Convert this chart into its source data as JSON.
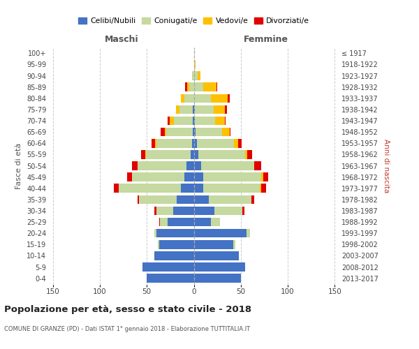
{
  "age_groups": [
    "0-4",
    "5-9",
    "10-14",
    "15-19",
    "20-24",
    "25-29",
    "30-34",
    "35-39",
    "40-44",
    "45-49",
    "50-54",
    "55-59",
    "60-64",
    "65-69",
    "70-74",
    "75-79",
    "80-84",
    "85-89",
    "90-94",
    "95-99",
    "100+"
  ],
  "birth_years": [
    "2013-2017",
    "2008-2012",
    "2003-2007",
    "1998-2002",
    "1993-1997",
    "1988-1992",
    "1983-1987",
    "1978-1982",
    "1973-1977",
    "1968-1972",
    "1963-1967",
    "1958-1962",
    "1953-1957",
    "1948-1952",
    "1943-1947",
    "1938-1942",
    "1933-1937",
    "1928-1932",
    "1923-1927",
    "1918-1922",
    "≤ 1917"
  ],
  "males": {
    "celibi": [
      50,
      55,
      42,
      37,
      40,
      28,
      22,
      18,
      14,
      10,
      8,
      3,
      2,
      1,
      1,
      1,
      0,
      0,
      0,
      0,
      0
    ],
    "coniugati": [
      0,
      0,
      0,
      1,
      2,
      8,
      18,
      40,
      66,
      56,
      52,
      48,
      38,
      28,
      20,
      14,
      10,
      5,
      2,
      0,
      0
    ],
    "vedovi": [
      0,
      0,
      0,
      0,
      0,
      0,
      0,
      0,
      0,
      0,
      0,
      1,
      1,
      2,
      5,
      4,
      4,
      2,
      0,
      0,
      0
    ],
    "divorziati": [
      0,
      0,
      0,
      0,
      0,
      1,
      2,
      2,
      5,
      5,
      6,
      4,
      4,
      4,
      2,
      0,
      0,
      2,
      0,
      0,
      0
    ]
  },
  "females": {
    "nubili": [
      50,
      55,
      48,
      42,
      56,
      18,
      22,
      16,
      10,
      10,
      8,
      5,
      3,
      2,
      1,
      1,
      0,
      0,
      0,
      0,
      0
    ],
    "coniugate": [
      0,
      0,
      0,
      2,
      4,
      10,
      30,
      45,
      60,
      62,
      56,
      50,
      40,
      28,
      22,
      20,
      18,
      10,
      4,
      1,
      0
    ],
    "vedove": [
      0,
      0,
      0,
      0,
      0,
      0,
      0,
      0,
      2,
      2,
      0,
      2,
      4,
      8,
      10,
      12,
      18,
      14,
      3,
      1,
      0
    ],
    "divorziate": [
      0,
      0,
      0,
      0,
      0,
      0,
      2,
      3,
      5,
      5,
      8,
      5,
      4,
      1,
      1,
      2,
      2,
      1,
      0,
      0,
      0
    ]
  },
  "colors": {
    "celibi": "#4472c4",
    "coniugati": "#c5d9a0",
    "vedovi": "#ffc000",
    "divorziati": "#e00000"
  },
  "title": "Popolazione per età, sesso e stato civile - 2018",
  "subtitle": "COMUNE DI GRANZE (PD) - Dati ISTAT 1° gennaio 2018 - Elaborazione TUTTITALIA.IT",
  "ylabel_left": "Fasce di età",
  "ylabel_right": "Anni di nascita",
  "xlabel_left": "Maschi",
  "xlabel_right": "Femmine",
  "xlim": 155,
  "bg_color": "#ffffff",
  "grid_color": "#cccccc",
  "legend_labels": [
    "Celibi/Nubili",
    "Coniugati/e",
    "Vedovi/e",
    "Divorziati/e"
  ]
}
